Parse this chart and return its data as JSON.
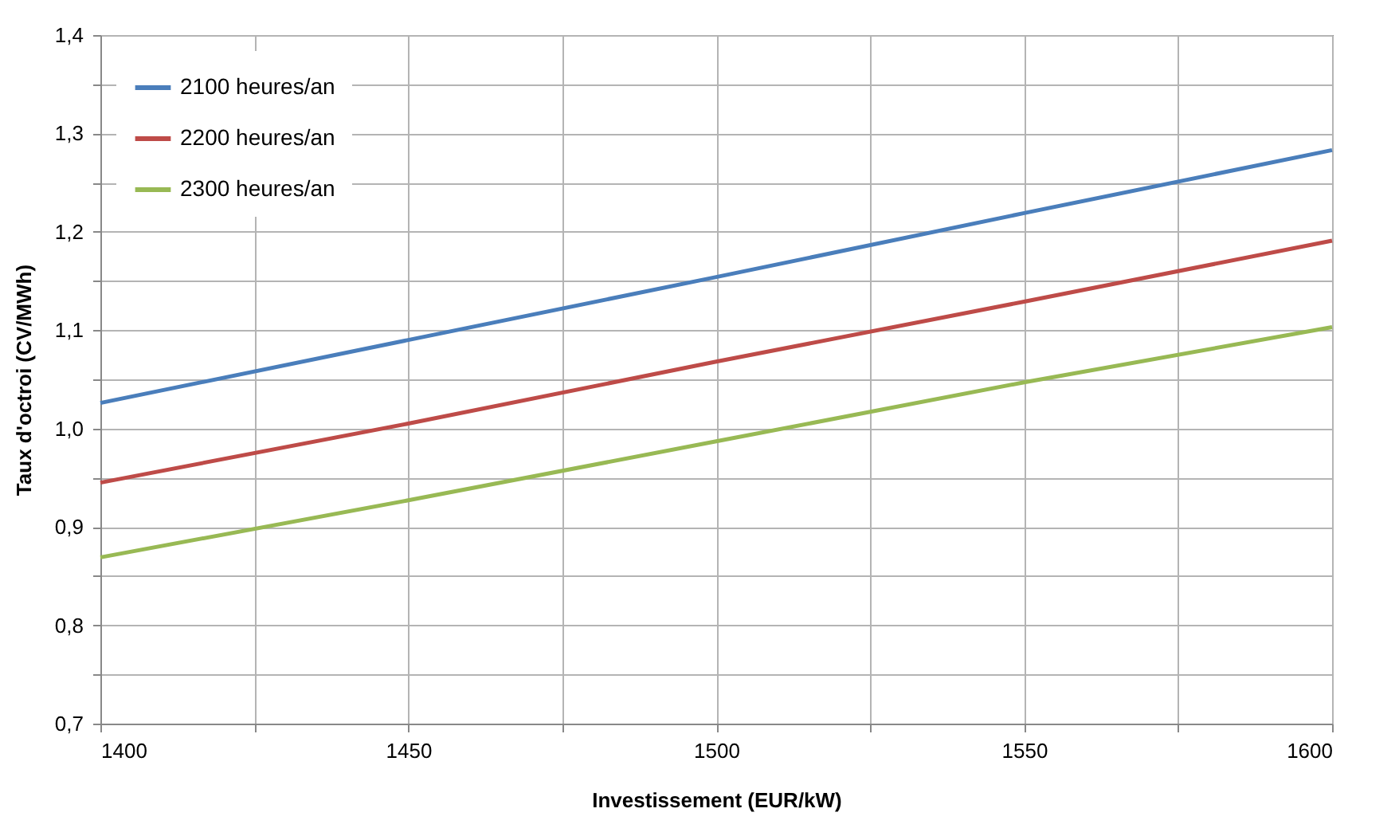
{
  "chart_data": {
    "type": "line",
    "xlabel": "Investissement (EUR/kW)",
    "ylabel": "Taux d'octroi (CV/MWh)",
    "x": [
      1400,
      1450,
      1500,
      1550,
      1600
    ],
    "series": [
      {
        "name": "2100 heures/an",
        "color": "#4a7ebb",
        "values": [
          1.026,
          1.09,
          1.154,
          1.219,
          1.283
        ]
      },
      {
        "name": "2200 heures/an",
        "color": "#be4b48",
        "values": [
          0.945,
          1.005,
          1.068,
          1.129,
          1.191
        ]
      },
      {
        "name": "2300 heures/an",
        "color": "#98b954",
        "values": [
          0.869,
          0.927,
          0.987,
          1.047,
          1.103
        ]
      }
    ],
    "xlim": [
      1400,
      1600
    ],
    "xticks": [
      1400,
      {
        "value": 1425,
        "label": null
      },
      1450,
      {
        "value": 1475,
        "label": null
      },
      1500,
      {
        "value": 1525,
        "label": null
      },
      1550,
      {
        "value": 1575,
        "label": null
      },
      1600
    ],
    "ylim": [
      0.7,
      1.4
    ],
    "yticks": [
      {
        "value": 0.7,
        "label": "0,7"
      },
      {
        "value": 0.75,
        "label": null
      },
      {
        "value": 0.8,
        "label": "0,8"
      },
      {
        "value": 0.85,
        "label": null
      },
      {
        "value": 0.9,
        "label": "0,9"
      },
      {
        "value": 0.95,
        "label": null
      },
      {
        "value": 1.0,
        "label": "1,0"
      },
      {
        "value": 1.05,
        "label": null
      },
      {
        "value": 1.1,
        "label": "1,1"
      },
      {
        "value": 1.15,
        "label": null
      },
      {
        "value": 1.2,
        "label": "1,2"
      },
      {
        "value": 1.25,
        "label": null
      },
      {
        "value": 1.3,
        "label": "1,3"
      },
      {
        "value": 1.35,
        "label": null
      },
      {
        "value": 1.4,
        "label": "1,4"
      }
    ],
    "grid": true,
    "legend": "top left",
    "marker": "none",
    "line_style": "solid"
  }
}
